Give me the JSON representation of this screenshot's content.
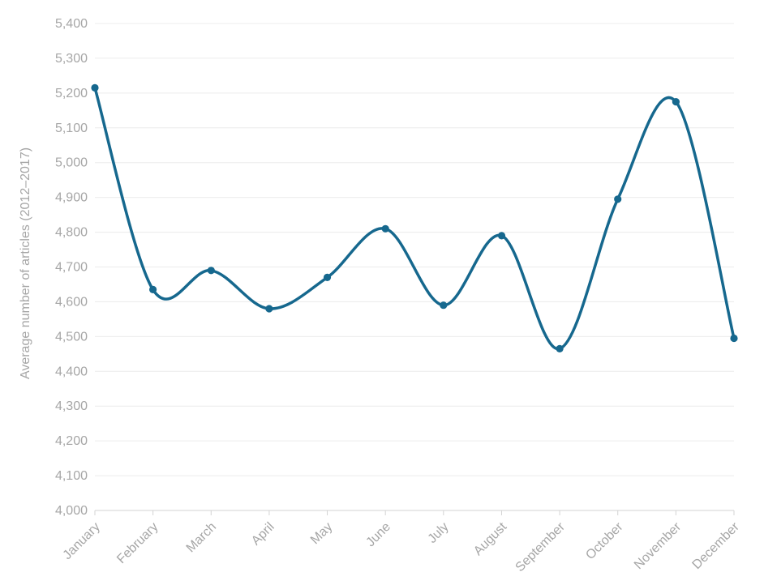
{
  "chart_data": {
    "type": "line",
    "title": "",
    "categories": [
      "January",
      "February",
      "March",
      "April",
      "May",
      "June",
      "July",
      "August",
      "September",
      "October",
      "November",
      "December"
    ],
    "values": [
      5215,
      4635,
      4690,
      4580,
      4670,
      4810,
      4590,
      4790,
      4465,
      4895,
      5175,
      4495
    ],
    "series_name": "Average number of articles",
    "xlabel": "",
    "ylabel": "Average number of articles (2012–2017)",
    "ylim": [
      4000,
      5400
    ],
    "ytick_step": 100,
    "ytick_labels": [
      "4,000",
      "4,100",
      "4,200",
      "4,300",
      "4,400",
      "4,500",
      "4,600",
      "4,700",
      "4,800",
      "4,900",
      "5,000",
      "5,100",
      "5,200",
      "5,300",
      "5,400"
    ],
    "grid": true,
    "legend": "none",
    "marker": "circle",
    "smooth": true,
    "x_label_rotation_deg": -45
  },
  "style": {
    "line_color": "#16688e",
    "marker_color": "#16688e",
    "label_color": "#a6a6a6",
    "gridline_color": "#ececec",
    "axis_line_color": "#d3d3d3",
    "background_color": "#ffffff"
  }
}
